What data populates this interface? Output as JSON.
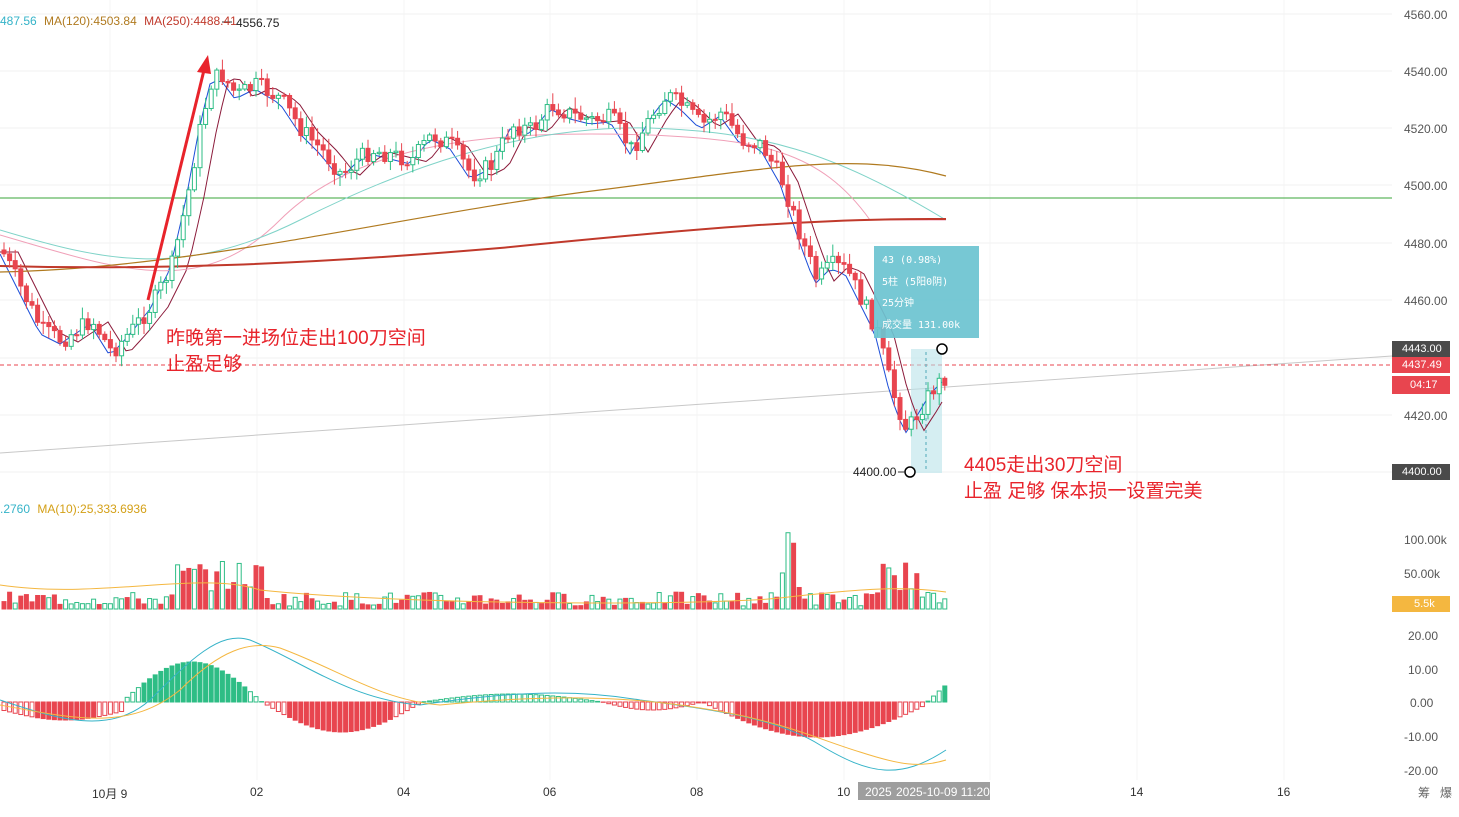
{
  "header_main": {
    "ma_a": "487.56",
    "ma_120": "MA(120):4503.84",
    "ma_250": "MA(250):4488.41"
  },
  "high_label": "4556.75",
  "low_label": "4400.00",
  "header_vol": {
    "vol_a": ".2760",
    "ma10": "MA(10):25,333.6936"
  },
  "price_axis": [
    "4560.00",
    "4540.00",
    "4520.00",
    "4500.00",
    "4480.00",
    "4460.00",
    "4420.00"
  ],
  "price_tags": {
    "level_4443": "4443.00",
    "last_price": "4437.49",
    "countdown": "04:17",
    "level_4400": "4400.00"
  },
  "vol_axis": [
    "100.00k",
    "50.00k"
  ],
  "vol_tag": "5.5k",
  "macd_axis": [
    "20.00",
    "10.00",
    "0.00",
    "-10.00",
    "-20.00"
  ],
  "time_axis": [
    "10月 9",
    "02",
    "04",
    "06",
    "08",
    "10",
    "14",
    "16"
  ],
  "crosshair_label": "2025-10-09 11:20",
  "crosshair_prefix": "2025",
  "measure_box": {
    "line1": "43 (0.98%)",
    "line2": "5柱 (5阳0阴)",
    "line3": "25分钟",
    "line4": "成交量 131.00k"
  },
  "annotations": {
    "note1_line1": "昨晚第一进场位走出100刀空间",
    "note1_line2": "止盈足够",
    "note2_line1": "4405走出30刀空间",
    "note2_line2": "止盈 足够 保本损一设置完美"
  },
  "corner_icons": [
    "筹",
    "爆"
  ],
  "colors": {
    "up": "#2ebd85",
    "down": "#e8454f",
    "ma120": "#b07a1f",
    "ma250": "#c0392b",
    "support_line": "#3aa63a",
    "annotation": "#e8232b",
    "measure_box": "#6cc4d1"
  }
}
